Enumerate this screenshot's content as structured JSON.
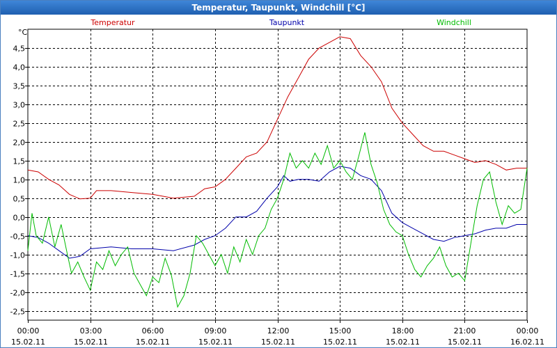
{
  "window": {
    "title": "Temperatur, Taupunkt, Windchill [°C]"
  },
  "chart_data": {
    "type": "line",
    "title": "Temperatur, Taupunkt, Windchill [°C]",
    "ylabel": "°C",
    "ylim": [
      -2.75,
      5.0
    ],
    "xlim": [
      0,
      24
    ],
    "grid": true,
    "legend_placement": "top",
    "y_ticks": [
      4.5,
      4.0,
      3.5,
      3.0,
      2.5,
      2.0,
      1.5,
      1.0,
      0.5,
      0.0,
      -0.5,
      -1.0,
      -1.5,
      -2.0,
      -2.5
    ],
    "y_tick_labels": [
      "4,5",
      "4,0",
      "3,5",
      "3,0",
      "2,5",
      "2,0",
      "1,5",
      "1,0",
      "0,5",
      "0,0",
      "-0,5",
      "-1,0",
      "-1,5",
      "-2,0",
      "-2,5"
    ],
    "x_ticks": [
      {
        "time": "00:00",
        "date": "15.02.11"
      },
      {
        "time": "03:00",
        "date": "15.02.11"
      },
      {
        "time": "06:00",
        "date": "15.02.11"
      },
      {
        "time": "09:00",
        "date": "15.02.11"
      },
      {
        "time": "12:00",
        "date": "15.02.11"
      },
      {
        "time": "15:00",
        "date": "15.02.11"
      },
      {
        "time": "18:00",
        "date": "15.02.11"
      },
      {
        "time": "21:00",
        "date": "15.02.11"
      },
      {
        "time": "00:00",
        "date": "16.02.11"
      }
    ],
    "series": [
      {
        "name": "Temperatur",
        "color": "#cc0000",
        "points": [
          [
            0,
            1.25
          ],
          [
            0.5,
            1.2
          ],
          [
            1,
            1.0
          ],
          [
            1.5,
            0.85
          ],
          [
            2,
            0.6
          ],
          [
            2.5,
            0.48
          ],
          [
            3,
            0.5
          ],
          [
            3.3,
            0.7
          ],
          [
            4,
            0.7
          ],
          [
            5,
            0.65
          ],
          [
            6,
            0.6
          ],
          [
            7,
            0.5
          ],
          [
            8,
            0.55
          ],
          [
            8.5,
            0.75
          ],
          [
            9,
            0.8
          ],
          [
            9.5,
            1.0
          ],
          [
            10,
            1.3
          ],
          [
            10.5,
            1.6
          ],
          [
            11,
            1.7
          ],
          [
            11.5,
            2.0
          ],
          [
            12,
            2.6
          ],
          [
            12.5,
            3.2
          ],
          [
            13,
            3.7
          ],
          [
            13.5,
            4.2
          ],
          [
            14,
            4.5
          ],
          [
            14.5,
            4.65
          ],
          [
            15,
            4.8
          ],
          [
            15.5,
            4.75
          ],
          [
            16,
            4.3
          ],
          [
            16.5,
            4.0
          ],
          [
            17,
            3.6
          ],
          [
            17.5,
            2.9
          ],
          [
            18,
            2.5
          ],
          [
            18.5,
            2.2
          ],
          [
            19,
            1.9
          ],
          [
            19.5,
            1.75
          ],
          [
            20,
            1.75
          ],
          [
            20.5,
            1.65
          ],
          [
            21,
            1.55
          ],
          [
            21.5,
            1.45
          ],
          [
            22,
            1.5
          ],
          [
            22.5,
            1.4
          ],
          [
            23,
            1.25
          ],
          [
            23.5,
            1.3
          ],
          [
            24,
            1.3
          ]
        ]
      },
      {
        "name": "Taupunkt",
        "color": "#0000aa",
        "points": [
          [
            0,
            -0.5
          ],
          [
            0.5,
            -0.55
          ],
          [
            1,
            -0.7
          ],
          [
            1.5,
            -0.9
          ],
          [
            2,
            -1.1
          ],
          [
            2.5,
            -1.05
          ],
          [
            3,
            -0.85
          ],
          [
            4,
            -0.8
          ],
          [
            5,
            -0.85
          ],
          [
            6,
            -0.85
          ],
          [
            7,
            -0.9
          ],
          [
            8,
            -0.75
          ],
          [
            8.5,
            -0.6
          ],
          [
            9,
            -0.5
          ],
          [
            9.5,
            -0.3
          ],
          [
            10,
            0.0
          ],
          [
            10.5,
            0.0
          ],
          [
            11,
            0.15
          ],
          [
            11.5,
            0.5
          ],
          [
            12,
            0.8
          ],
          [
            12.3,
            1.1
          ],
          [
            12.6,
            0.95
          ],
          [
            13,
            1.0
          ],
          [
            13.5,
            1.0
          ],
          [
            14,
            0.95
          ],
          [
            14.5,
            1.2
          ],
          [
            15,
            1.35
          ],
          [
            15.5,
            1.3
          ],
          [
            16,
            1.1
          ],
          [
            16.5,
            1.0
          ],
          [
            17,
            0.7
          ],
          [
            17.5,
            0.1
          ],
          [
            18,
            -0.15
          ],
          [
            18.5,
            -0.3
          ],
          [
            19,
            -0.45
          ],
          [
            19.5,
            -0.6
          ],
          [
            20,
            -0.65
          ],
          [
            20.5,
            -0.55
          ],
          [
            21,
            -0.5
          ],
          [
            21.5,
            -0.45
          ],
          [
            22,
            -0.35
          ],
          [
            22.5,
            -0.3
          ],
          [
            23,
            -0.3
          ],
          [
            23.5,
            -0.2
          ],
          [
            24,
            -0.2
          ]
        ]
      },
      {
        "name": "Windchill",
        "color": "#00bb00",
        "points": [
          [
            0,
            -0.9
          ],
          [
            0.2,
            0.1
          ],
          [
            0.4,
            -0.5
          ],
          [
            0.7,
            -0.7
          ],
          [
            1,
            0.0
          ],
          [
            1.3,
            -0.8
          ],
          [
            1.6,
            -0.2
          ],
          [
            1.9,
            -1.0
          ],
          [
            2.1,
            -1.5
          ],
          [
            2.4,
            -1.2
          ],
          [
            2.7,
            -1.6
          ],
          [
            3,
            -1.95
          ],
          [
            3.3,
            -1.2
          ],
          [
            3.6,
            -1.4
          ],
          [
            3.9,
            -0.9
          ],
          [
            4.2,
            -1.3
          ],
          [
            4.5,
            -1.0
          ],
          [
            4.8,
            -0.8
          ],
          [
            5.1,
            -1.5
          ],
          [
            5.4,
            -1.8
          ],
          [
            5.7,
            -2.1
          ],
          [
            6,
            -1.6
          ],
          [
            6.3,
            -1.75
          ],
          [
            6.6,
            -1.1
          ],
          [
            6.9,
            -1.55
          ],
          [
            7.2,
            -2.4
          ],
          [
            7.5,
            -2.1
          ],
          [
            7.8,
            -1.5
          ],
          [
            8.1,
            -0.5
          ],
          [
            8.4,
            -0.7
          ],
          [
            8.7,
            -1.0
          ],
          [
            9,
            -1.3
          ],
          [
            9.3,
            -1.0
          ],
          [
            9.6,
            -1.5
          ],
          [
            9.9,
            -0.8
          ],
          [
            10.2,
            -1.2
          ],
          [
            10.5,
            -0.6
          ],
          [
            10.8,
            -1.0
          ],
          [
            11.1,
            -0.5
          ],
          [
            11.4,
            -0.3
          ],
          [
            11.7,
            0.2
          ],
          [
            12,
            0.5
          ],
          [
            12.3,
            1.0
          ],
          [
            12.6,
            1.7
          ],
          [
            12.9,
            1.3
          ],
          [
            13.2,
            1.5
          ],
          [
            13.5,
            1.3
          ],
          [
            13.8,
            1.7
          ],
          [
            14.1,
            1.4
          ],
          [
            14.4,
            1.9
          ],
          [
            14.7,
            1.3
          ],
          [
            15,
            1.5
          ],
          [
            15.3,
            1.2
          ],
          [
            15.6,
            1.0
          ],
          [
            15.9,
            1.6
          ],
          [
            16.2,
            2.25
          ],
          [
            16.5,
            1.4
          ],
          [
            16.8,
            0.9
          ],
          [
            17.1,
            0.2
          ],
          [
            17.4,
            -0.2
          ],
          [
            17.7,
            -0.4
          ],
          [
            18,
            -0.5
          ],
          [
            18.3,
            -1.0
          ],
          [
            18.6,
            -1.4
          ],
          [
            18.9,
            -1.6
          ],
          [
            19.2,
            -1.3
          ],
          [
            19.5,
            -1.1
          ],
          [
            19.8,
            -0.8
          ],
          [
            20.1,
            -1.3
          ],
          [
            20.4,
            -1.6
          ],
          [
            20.7,
            -1.5
          ],
          [
            21,
            -1.7
          ],
          [
            21.3,
            -0.7
          ],
          [
            21.6,
            0.3
          ],
          [
            21.9,
            1.0
          ],
          [
            22.2,
            1.2
          ],
          [
            22.5,
            0.4
          ],
          [
            22.8,
            -0.2
          ],
          [
            23.1,
            0.3
          ],
          [
            23.4,
            0.1
          ],
          [
            23.7,
            0.2
          ],
          [
            24,
            1.3
          ]
        ]
      }
    ]
  }
}
